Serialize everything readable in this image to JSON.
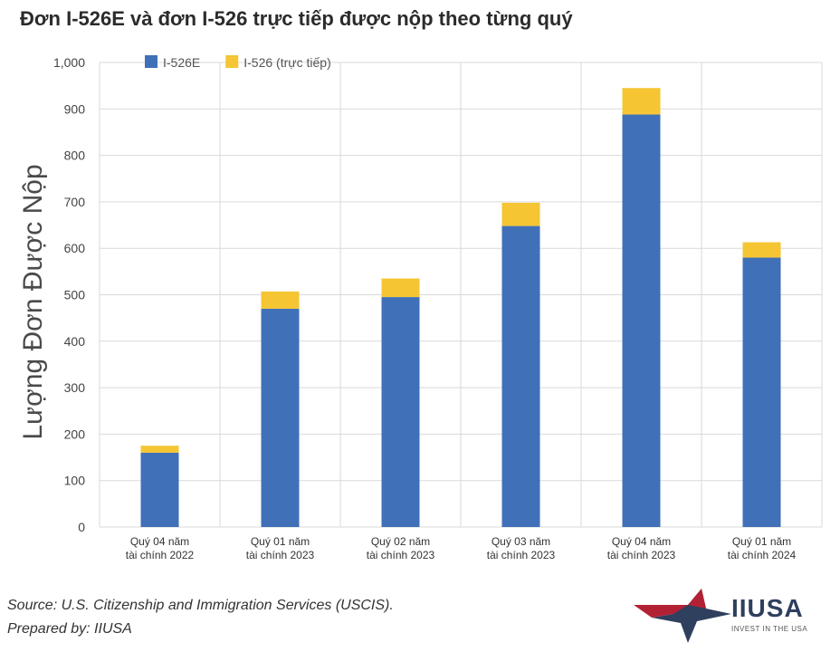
{
  "chart_data": {
    "type": "bar",
    "stacked": true,
    "title": "Đơn I-526E và đơn I-526 trực tiếp được nộp theo từng quý",
    "ylabel": "Lượng Đơn Được Nộp",
    "xlabel": "",
    "ylim": [
      0,
      1000
    ],
    "yticks": [
      "0",
      "100",
      "200",
      "300",
      "400",
      "500",
      "600",
      "700",
      "800",
      "900",
      "1,000"
    ],
    "grid": true,
    "legend_position": "top",
    "categories": [
      [
        "Quý 04 năm",
        "tài chính 2022"
      ],
      [
        "Quý 01 năm",
        "tài chính 2023"
      ],
      [
        "Quý 02 năm",
        "tài chính 2023"
      ],
      [
        "Quý 03 năm",
        "tài chính 2023"
      ],
      [
        "Quý 04 năm",
        "tài chính 2023"
      ],
      [
        "Quý 01 năm",
        "tài chính 2024"
      ]
    ],
    "series": [
      {
        "name": "I-526E",
        "color": "#4070b8",
        "values": [
          160,
          470,
          495,
          648,
          888,
          580
        ]
      },
      {
        "name": "I-526 (trực tiếp)",
        "color": "#f5c533",
        "values": [
          15,
          37,
          40,
          50,
          57,
          33
        ]
      }
    ]
  },
  "footer": {
    "source": "Source: U.S. Citizenship and Immigration Services (USCIS).",
    "prepared": "Prepared by: IIUSA"
  },
  "logo": {
    "name": "IIUSA",
    "tagline": "INVEST IN THE USA"
  }
}
